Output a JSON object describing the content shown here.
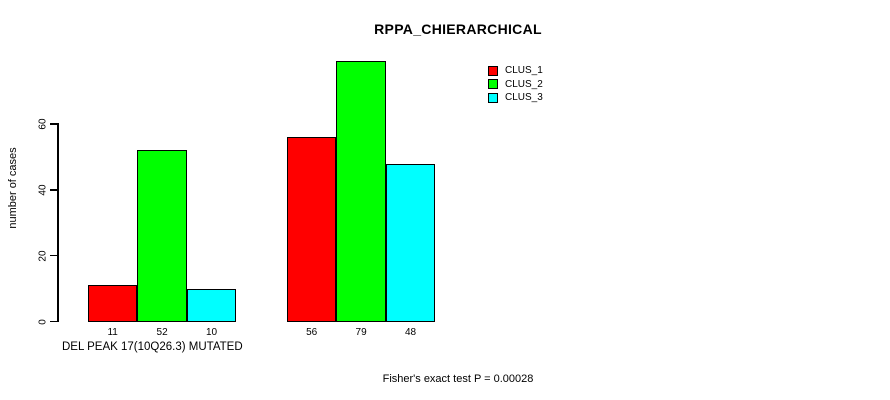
{
  "chart_data": {
    "type": "bar",
    "title": "RPPA_CHIERARCHICAL",
    "ylabel": "number of cases",
    "xlabel": "DEL PEAK 17(10Q26.3) MUTATED",
    "yticks": [
      0,
      20,
      40,
      60
    ],
    "ylim": [
      0,
      80
    ],
    "grid": false,
    "categories": [
      "DEL PEAK 17(10Q26.3) MUTATED",
      ""
    ],
    "series": [
      {
        "name": "CLUS_1",
        "color": "#ff0000",
        "values": [
          11,
          56
        ]
      },
      {
        "name": "CLUS_2",
        "color": "#00ff00",
        "values": [
          52,
          79
        ]
      },
      {
        "name": "CLUS_3",
        "color": "#00ffff",
        "values": [
          10,
          48
        ]
      }
    ],
    "bar_value_labels_shown": true,
    "legend": {
      "position": "top-right",
      "entries": [
        "CLUS_1",
        "CLUS_2",
        "CLUS_3"
      ]
    },
    "annotation": "Fisher's exact test P = 0.00028",
    "axis_color": "#000000",
    "text_color": "#000000",
    "background_color": "#ffffff"
  }
}
